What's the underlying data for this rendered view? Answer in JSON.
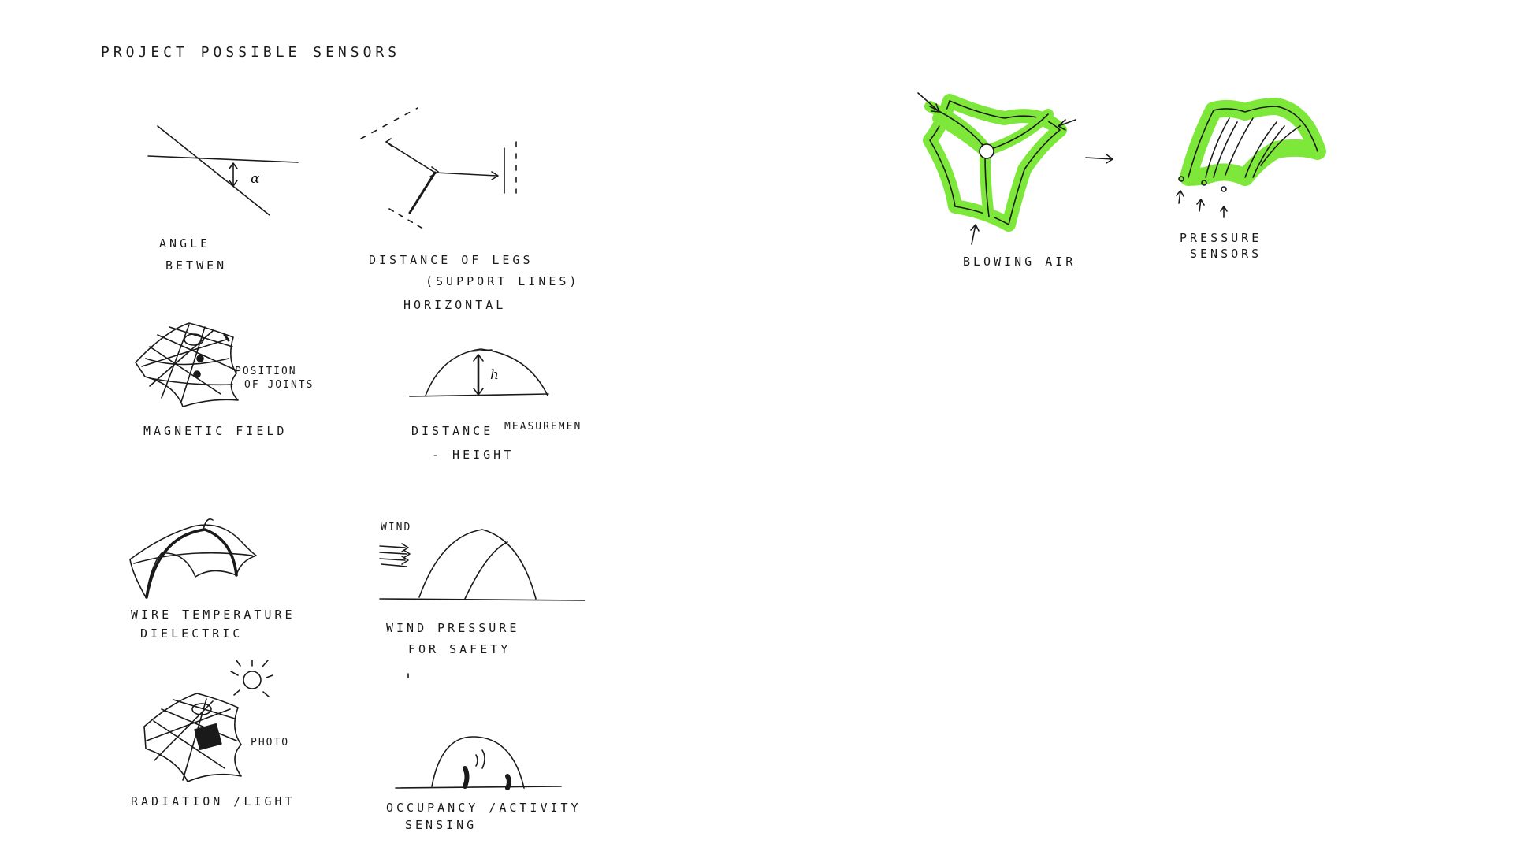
{
  "title": "PROJECT POSSIBLE SENSORS",
  "sensors": {
    "angle": {
      "line1": "ANGLE",
      "line2": "BETWEN",
      "symbol": "α"
    },
    "distance_legs": {
      "line1": "DISTANCE OF LEGS",
      "line2": "(SUPPORT LINES)",
      "line3": "HORIZONTAL"
    },
    "magnetic": {
      "label": "MAGNETIC FIELD",
      "annotation_line1": "POSITION",
      "annotation_line2": "OF JOINTS"
    },
    "distance_height": {
      "line1": "DISTANCE",
      "line1b": "MEASUREMEN",
      "line2": "- HEIGHT",
      "symbol": "h"
    },
    "wire": {
      "line1": "WIRE TEMPERATURE",
      "line2": "DIELECTRIC"
    },
    "wind": {
      "annotation": "WIND",
      "line1": "WIND PRESSURE",
      "line2": "FOR SAFETY"
    },
    "radiation": {
      "label": "RADIATION /LIGHT",
      "annotation": "PHOTO"
    },
    "occupancy": {
      "line1": "OCCUPANCY /ACTIVITY",
      "line2": "SENSING"
    }
  },
  "right": {
    "blowing": {
      "label": "BLOWING AIR"
    },
    "pressure": {
      "line1": "PRESSURE",
      "line2": "SENSORS"
    }
  },
  "colors": {
    "ink": "#1a1a1a",
    "highlight": "#7ee83a"
  }
}
